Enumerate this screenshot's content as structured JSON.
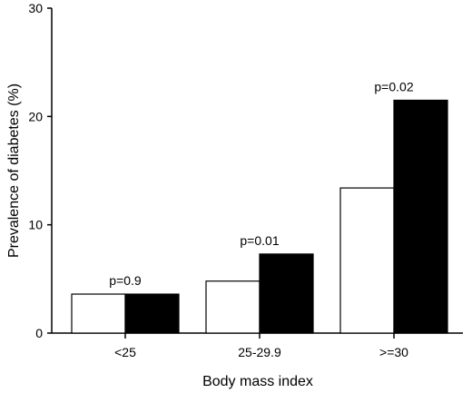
{
  "chart_data": {
    "type": "bar",
    "xlabel": "Body mass index",
    "ylabel": "Prevalence of diabetes (%)",
    "ylim": [
      0,
      30
    ],
    "yticks": [
      0,
      10,
      20,
      30
    ],
    "categories": [
      "<25",
      "25-29.9",
      ">=30"
    ],
    "series": [
      {
        "fill": "#ffffff",
        "values": [
          3.6,
          4.8,
          13.4
        ]
      },
      {
        "fill": "#000000",
        "values": [
          3.6,
          7.3,
          21.5
        ]
      }
    ],
    "annotations": [
      "p=0.9",
      "p=0.01",
      "p=0.02"
    ],
    "grid": false,
    "legend": "none"
  }
}
